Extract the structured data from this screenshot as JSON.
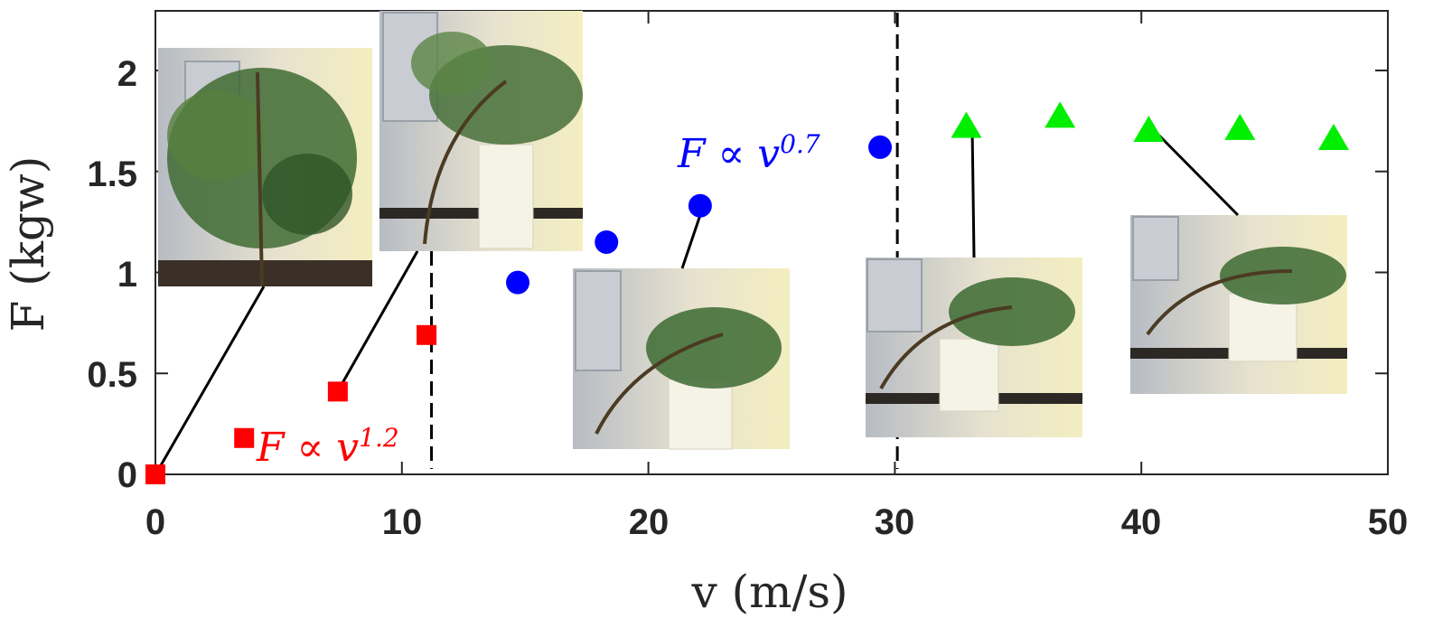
{
  "chart_data": {
    "type": "scatter",
    "xlabel": "v (m/s)",
    "ylabel": "F (kgw)",
    "xlim": [
      0,
      50
    ],
    "ylim": [
      0,
      2.25
    ],
    "xticks": [
      "0",
      "10",
      "20",
      "30",
      "40",
      "50"
    ],
    "yticks": [
      "0",
      "0.5",
      "1",
      "1.5",
      "2"
    ],
    "grid": false,
    "series": [
      {
        "marker": "square",
        "color": "#ff0000",
        "points": [
          [
            0,
            0
          ],
          [
            3.6,
            0.18
          ],
          [
            7.4,
            0.41
          ],
          [
            11.0,
            0.69
          ]
        ]
      },
      {
        "marker": "circle",
        "color": "#0000ff",
        "points": [
          [
            14.7,
            0.95
          ],
          [
            18.3,
            1.15
          ],
          [
            22.1,
            1.33
          ],
          [
            29.4,
            1.62
          ]
        ]
      },
      {
        "marker": "triangle",
        "color": "#00ee00",
        "points": [
          [
            32.9,
            1.72
          ],
          [
            36.7,
            1.77
          ],
          [
            40.3,
            1.7
          ],
          [
            44.0,
            1.71
          ],
          [
            47.8,
            1.66
          ]
        ]
      }
    ],
    "vlines": [
      11.2,
      30.1
    ],
    "annotations": [
      {
        "text_main": "F ∝ v",
        "text_exp": "1.2",
        "color": "#ff0000"
      },
      {
        "text_main": "F ∝ v",
        "text_exp": "0.7",
        "color": "#0000ff"
      }
    ],
    "photo_callouts": [
      {
        "name": "photo-tree-at-rest",
        "point": [
          0,
          0
        ]
      },
      {
        "name": "photo-tree-low-wind",
        "point": [
          7.4,
          0.41
        ]
      },
      {
        "name": "photo-tree-mid-wind",
        "point": [
          22.1,
          1.33
        ]
      },
      {
        "name": "photo-tree-high-wind",
        "point": [
          32.9,
          1.72
        ]
      },
      {
        "name": "photo-tree-max-wind",
        "point": [
          40.3,
          1.7
        ]
      }
    ]
  }
}
